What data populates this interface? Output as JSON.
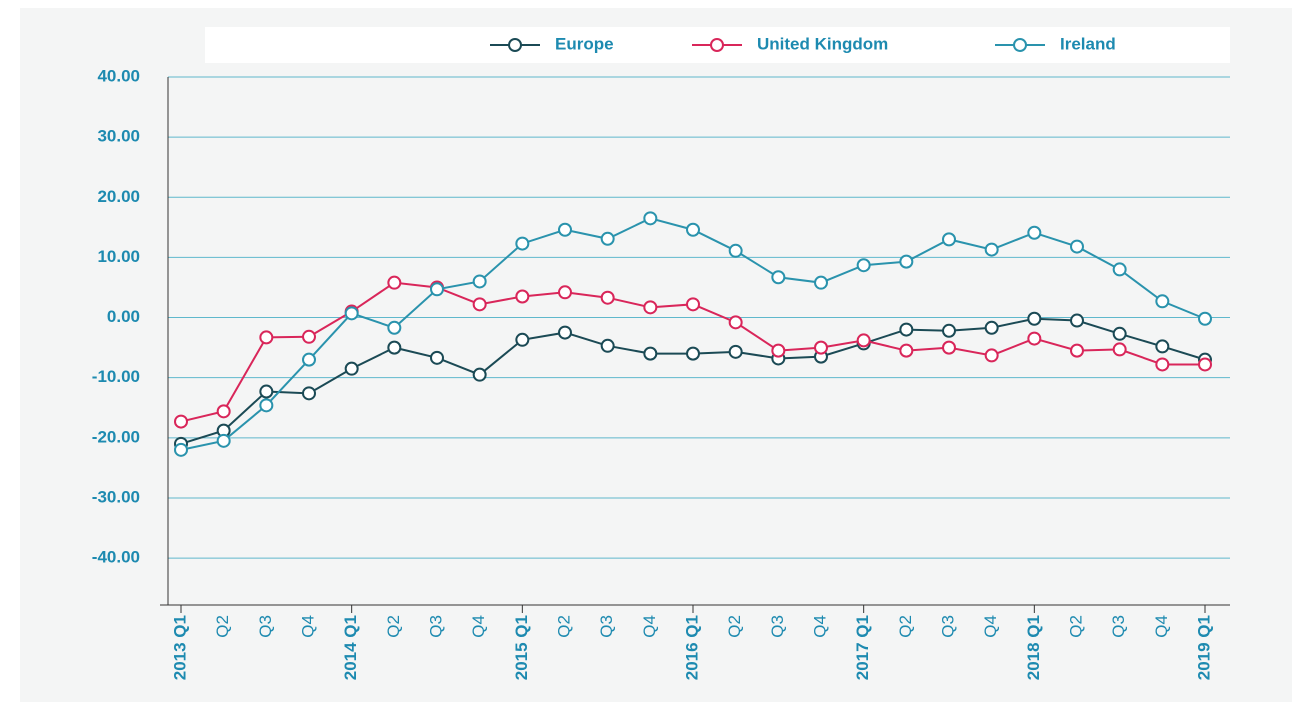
{
  "chart_data": {
    "type": "line",
    "categories": [
      "2013 Q1",
      "Q2",
      "Q3",
      "Q4",
      "2014 Q1",
      "Q2",
      "Q3",
      "Q4",
      "2015 Q1",
      "Q2",
      "Q3",
      "Q4",
      "2016 Q1",
      "Q2",
      "Q3",
      "Q4",
      "2017 Q1",
      "Q2",
      "Q3",
      "Q4",
      "2018 Q1",
      "Q2",
      "Q3",
      "Q4",
      "2019 Q1"
    ],
    "series": [
      {
        "name": "Europe",
        "color": "#1b4a55",
        "values": [
          -21.0,
          -18.8,
          -12.3,
          -12.6,
          -8.5,
          -5.0,
          -6.7,
          -9.5,
          -3.7,
          -2.5,
          -4.7,
          -6.0,
          -6.0,
          -5.7,
          -6.8,
          -6.5,
          -4.3,
          -2.0,
          -2.2,
          -1.7,
          -0.2,
          -0.5,
          -2.7,
          -4.8,
          -7.0
        ]
      },
      {
        "name": "United Kingdom",
        "color": "#d9265a",
        "values": [
          -17.3,
          -15.6,
          -3.3,
          -3.2,
          1.0,
          5.8,
          5.0,
          2.2,
          3.5,
          4.2,
          3.3,
          1.7,
          2.2,
          -0.8,
          -5.5,
          -5.0,
          -3.8,
          -5.5,
          -5.0,
          -6.3,
          -3.5,
          -5.5,
          -5.3,
          -7.8,
          -7.8
        ]
      },
      {
        "name": "Ireland",
        "color": "#2a93ad",
        "values": [
          -22.0,
          -20.5,
          -14.6,
          -7.0,
          0.7,
          -1.7,
          4.7,
          6.0,
          12.3,
          14.6,
          13.1,
          16.5,
          14.6,
          11.1,
          6.7,
          5.8,
          8.7,
          9.3,
          13.0,
          11.3,
          14.1,
          11.8,
          8.0,
          2.7,
          -0.2
        ]
      }
    ],
    "ylim": [
      -47.8,
      40
    ],
    "yticks": [
      {
        "value": 40,
        "label": "40.00"
      },
      {
        "value": 30,
        "label": "30.00"
      },
      {
        "value": 20,
        "label": "20.00"
      },
      {
        "value": 10,
        "label": "10.00"
      },
      {
        "value": 0,
        "label": "0.00"
      },
      {
        "value": -10,
        "label": "-10.00"
      },
      {
        "value": -20,
        "label": "-20.00"
      },
      {
        "value": -30,
        "label": "-30.00"
      },
      {
        "value": -40,
        "label": "-40.00"
      }
    ],
    "grid": true,
    "legend": "top"
  }
}
